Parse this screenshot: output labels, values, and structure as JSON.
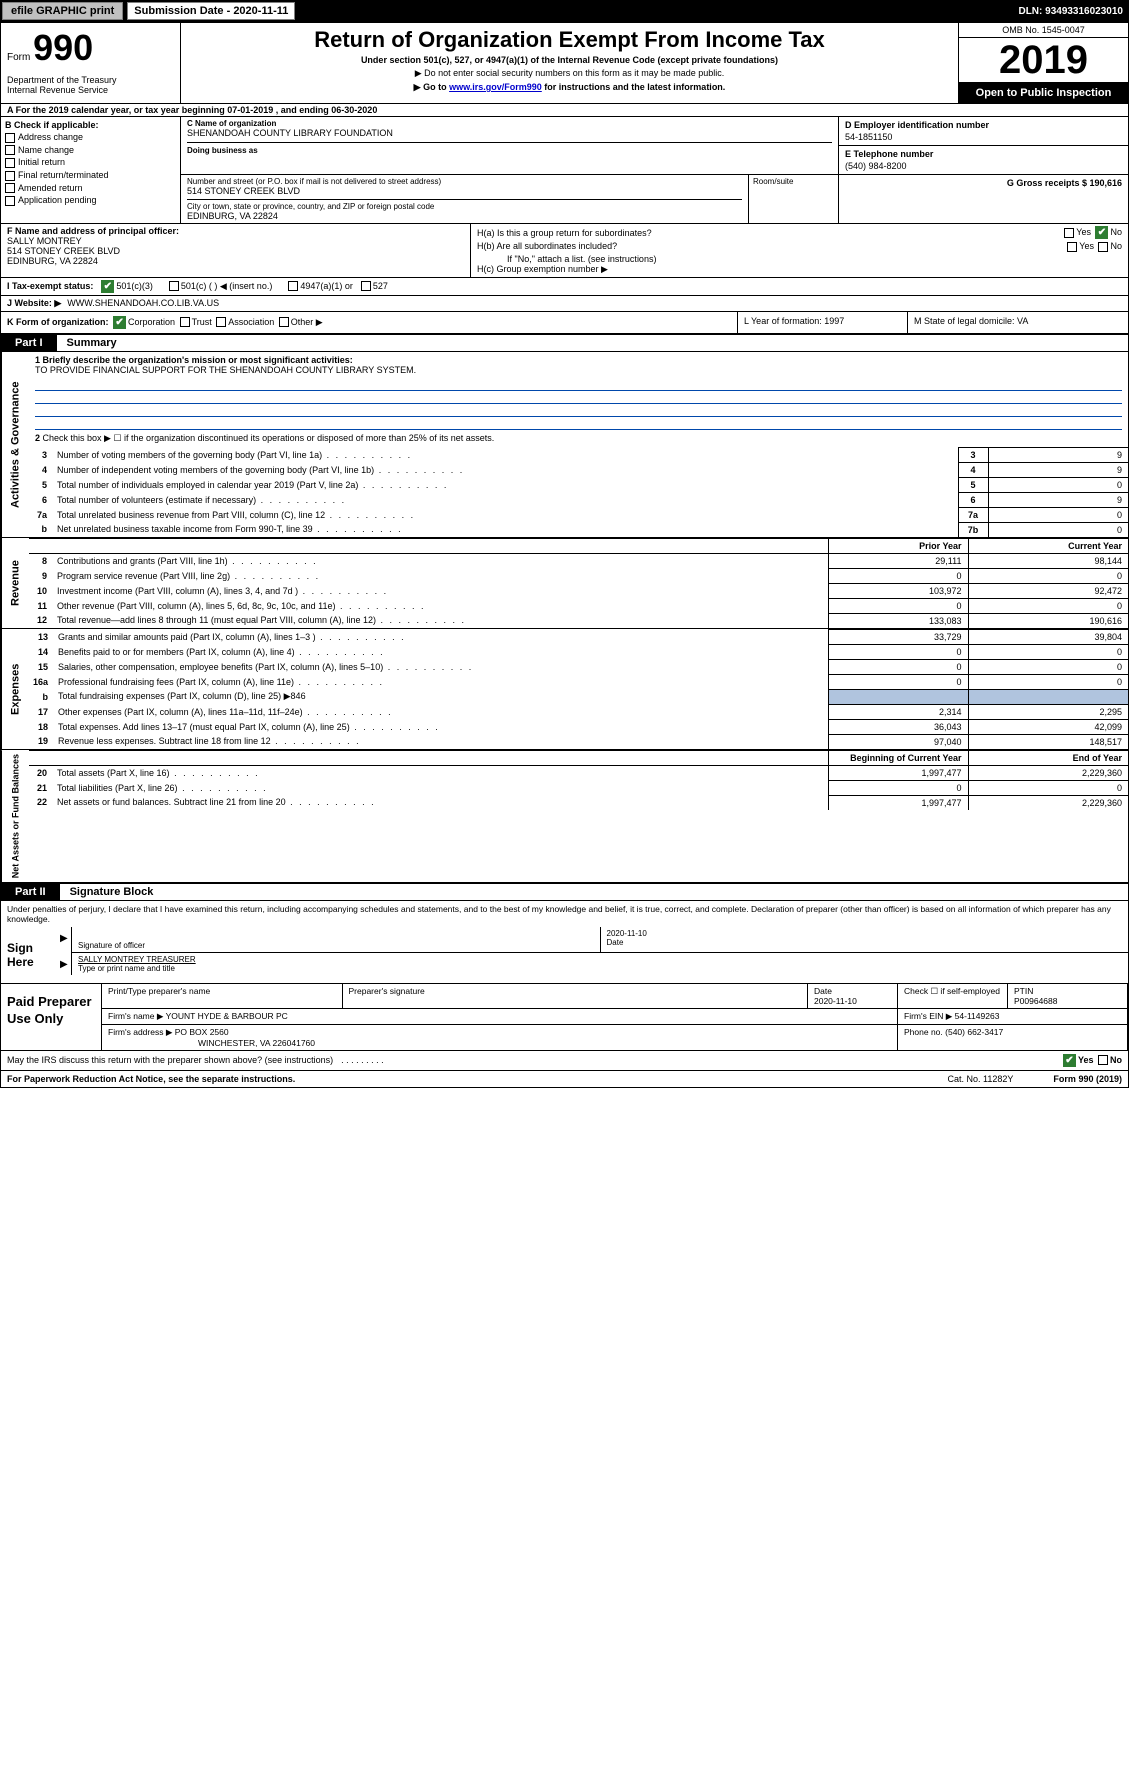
{
  "topbar": {
    "efile_btn": "efile GRAPHIC print",
    "sub_label": "Submission Date - 2020-11-11",
    "dln": "DLN: 93493316023010"
  },
  "header": {
    "form_prefix": "Form",
    "form_number": "990",
    "dept": "Department of the Treasury",
    "irs": "Internal Revenue Service",
    "title": "Return of Organization Exempt From Income Tax",
    "subtitle": "Under section 501(c), 527, or 4947(a)(1) of the Internal Revenue Code (except private foundations)",
    "note1": "▶ Do not enter social security numbers on this form as it may be made public.",
    "note2_pre": "▶ Go to ",
    "note2_link": "www.irs.gov/Form990",
    "note2_post": " for instructions and the latest information.",
    "omb": "OMB No. 1545-0047",
    "year": "2019",
    "open_public": "Open to Public Inspection"
  },
  "row_a": "A For the 2019 calendar year, or tax year beginning 07-01-2019    , and ending 06-30-2020",
  "col_b": {
    "label": "B Check if applicable:",
    "opts": [
      "Address change",
      "Name change",
      "Initial return",
      "Final return/terminated",
      "Amended return",
      "Application pending"
    ]
  },
  "col_c": {
    "name_label": "C Name of organization",
    "name_val": "SHENANDOAH COUNTY LIBRARY FOUNDATION",
    "dba_label": "Doing business as",
    "addr_label": "Number and street (or P.O. box if mail is not delivered to street address)",
    "addr_val": "514 STONEY CREEK BLVD",
    "room_label": "Room/suite",
    "city_label": "City or town, state or province, country, and ZIP or foreign postal code",
    "city_val": "EDINBURG, VA  22824"
  },
  "col_d": {
    "label": "D Employer identification number",
    "val": "54-1851150"
  },
  "col_e": {
    "label": "E Telephone number",
    "val": "(540) 984-8200"
  },
  "col_g": {
    "label": "G Gross receipts $ 190,616"
  },
  "col_f": {
    "label": "F  Name and address of principal officer:",
    "name": "SALLY MONTREY",
    "addr1": "514 STONEY CREEK BLVD",
    "addr2": "EDINBURG, VA  22824"
  },
  "col_h": {
    "ha": "H(a)  Is this a group return for subordinates?",
    "hb": "H(b)  Are all subordinates included?",
    "hb_note": "If \"No,\" attach a list. (see instructions)",
    "hc": "H(c)  Group exemption number ▶"
  },
  "row_i": {
    "label": "I  Tax-exempt status:",
    "o1": "501(c)(3)",
    "o2": "501(c) (   ) ◀ (insert no.)",
    "o3": "4947(a)(1) or",
    "o4": "527"
  },
  "row_j": {
    "label": "J  Website: ▶",
    "val": "WWW.SHENANDOAH.CO.LIB.VA.US"
  },
  "row_k": {
    "label": "K Form of organization:",
    "o1": "Corporation",
    "o2": "Trust",
    "o3": "Association",
    "o4": "Other ▶"
  },
  "row_l": {
    "label": "L Year of formation: 1997"
  },
  "row_m": {
    "label": "M State of legal domicile: VA"
  },
  "part1": {
    "tab": "Part I",
    "title": "Summary",
    "line1_label": "1  Briefly describe the organization's mission or most significant activities:",
    "line1_val": "TO PROVIDE FINANCIAL SUPPORT FOR THE SHENANDOAH COUNTY LIBRARY SYSTEM.",
    "line2": "Check this box ▶ ☐  if the organization discontinued its operations or disposed of more than 25% of its net assets.",
    "side_ag": "Activities & Governance",
    "side_rev": "Revenue",
    "side_exp": "Expenses",
    "side_na": "Net Assets or Fund Balances",
    "rows_ag": [
      {
        "n": "3",
        "desc": "Number of voting members of the governing body (Part VI, line 1a)",
        "box": "3",
        "val": "9"
      },
      {
        "n": "4",
        "desc": "Number of independent voting members of the governing body (Part VI, line 1b)",
        "box": "4",
        "val": "9"
      },
      {
        "n": "5",
        "desc": "Total number of individuals employed in calendar year 2019 (Part V, line 2a)",
        "box": "5",
        "val": "0"
      },
      {
        "n": "6",
        "desc": "Total number of volunteers (estimate if necessary)",
        "box": "6",
        "val": "9"
      },
      {
        "n": "7a",
        "desc": "Total unrelated business revenue from Part VIII, column (C), line 12",
        "box": "7a",
        "val": "0"
      },
      {
        "n": "b",
        "desc": "Net unrelated business taxable income from Form 990-T, line 39",
        "box": "7b",
        "val": "0"
      }
    ],
    "hdr_prior": "Prior Year",
    "hdr_curr": "Current Year",
    "rows_rev": [
      {
        "n": "8",
        "desc": "Contributions and grants (Part VIII, line 1h)",
        "p": "29,111",
        "c": "98,144"
      },
      {
        "n": "9",
        "desc": "Program service revenue (Part VIII, line 2g)",
        "p": "0",
        "c": "0"
      },
      {
        "n": "10",
        "desc": "Investment income (Part VIII, column (A), lines 3, 4, and 7d )",
        "p": "103,972",
        "c": "92,472"
      },
      {
        "n": "11",
        "desc": "Other revenue (Part VIII, column (A), lines 5, 6d, 8c, 9c, 10c, and 11e)",
        "p": "0",
        "c": "0"
      },
      {
        "n": "12",
        "desc": "Total revenue—add lines 8 through 11 (must equal Part VIII, column (A), line 12)",
        "p": "133,083",
        "c": "190,616"
      }
    ],
    "rows_exp": [
      {
        "n": "13",
        "desc": "Grants and similar amounts paid (Part IX, column (A), lines 1–3 )",
        "p": "33,729",
        "c": "39,804"
      },
      {
        "n": "14",
        "desc": "Benefits paid to or for members (Part IX, column (A), line 4)",
        "p": "0",
        "c": "0"
      },
      {
        "n": "15",
        "desc": "Salaries, other compensation, employee benefits (Part IX, column (A), lines 5–10)",
        "p": "0",
        "c": "0"
      },
      {
        "n": "16a",
        "desc": "Professional fundraising fees (Part IX, column (A), line 11e)",
        "p": "0",
        "c": "0"
      },
      {
        "n": "b",
        "desc": "Total fundraising expenses (Part IX, column (D), line 25) ▶846",
        "p": "",
        "c": "",
        "shaded": true
      },
      {
        "n": "17",
        "desc": "Other expenses (Part IX, column (A), lines 11a–11d, 11f–24e)",
        "p": "2,314",
        "c": "2,295"
      },
      {
        "n": "18",
        "desc": "Total expenses. Add lines 13–17 (must equal Part IX, column (A), line 25)",
        "p": "36,043",
        "c": "42,099"
      },
      {
        "n": "19",
        "desc": "Revenue less expenses. Subtract line 18 from line 12",
        "p": "97,040",
        "c": "148,517"
      }
    ],
    "hdr_beg": "Beginning of Current Year",
    "hdr_end": "End of Year",
    "rows_na": [
      {
        "n": "20",
        "desc": "Total assets (Part X, line 16)",
        "p": "1,997,477",
        "c": "2,229,360"
      },
      {
        "n": "21",
        "desc": "Total liabilities (Part X, line 26)",
        "p": "0",
        "c": "0"
      },
      {
        "n": "22",
        "desc": "Net assets or fund balances. Subtract line 21 from line 20",
        "p": "1,997,477",
        "c": "2,229,360"
      }
    ]
  },
  "part2": {
    "tab": "Part II",
    "title": "Signature Block",
    "disclaimer": "Under penalties of perjury, I declare that I have examined this return, including accompanying schedules and statements, and to the best of my knowledge and belief, it is true, correct, and complete. Declaration of preparer (other than officer) is based on all information of which preparer has any knowledge.",
    "sign_here": "Sign Here",
    "sig_officer_label": "Signature of officer",
    "sig_date": "2020-11-10",
    "sig_date_label": "Date",
    "sig_name": "SALLY MONTREY  TREASURER",
    "sig_name_label": "Type or print name and title",
    "paid_label": "Paid Preparer Use Only",
    "prep_name_label": "Print/Type preparer's name",
    "prep_sig_label": "Preparer's signature",
    "prep_date_label": "Date",
    "prep_date": "2020-11-10",
    "prep_check_label": "Check ☐ if self-employed",
    "ptin_label": "PTIN",
    "ptin": "P00964688",
    "firm_name_label": "Firm's name     ▶",
    "firm_name": "YOUNT HYDE & BARBOUR PC",
    "firm_ein_label": "Firm's EIN ▶",
    "firm_ein": "54-1149263",
    "firm_addr_label": "Firm's address ▶",
    "firm_addr1": "PO BOX 2560",
    "firm_addr2": "WINCHESTER, VA  226041760",
    "firm_phone_label": "Phone no.",
    "firm_phone": "(540) 662-3417"
  },
  "footer": {
    "discuss": "May the IRS discuss this return with the preparer shown above? (see instructions)",
    "paperwork": "For Paperwork Reduction Act Notice, see the separate instructions.",
    "cat": "Cat. No. 11282Y",
    "form": "Form 990 (2019)"
  }
}
